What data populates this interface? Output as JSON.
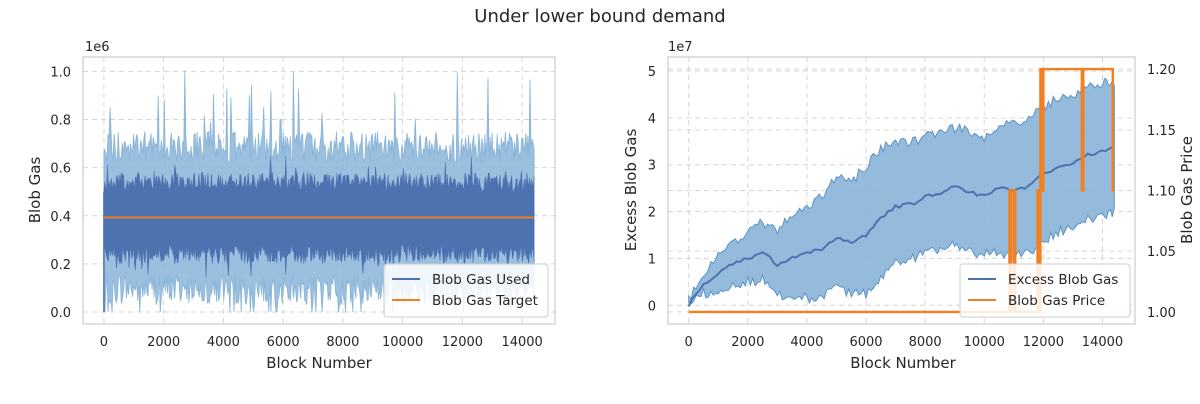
{
  "suptitle": "Under lower bound demand",
  "colors": {
    "blue": "#4c72b0",
    "light_blue": "#89b4d8",
    "orange": "#f47f20",
    "grid": "#d6d6d6",
    "frame": "#cccccc"
  },
  "chart_data": [
    {
      "type": "line",
      "xlabel": "Block Number",
      "ylabel": "Blob Gas",
      "offset_label": "1e6",
      "xlim": [
        -700,
        15100
      ],
      "ylim": [
        -0.05,
        1.06
      ],
      "xticks": [
        0,
        2000,
        4000,
        6000,
        8000,
        10000,
        12000,
        14000
      ],
      "xtick_labels": [
        "0",
        "2000",
        "4000",
        "6000",
        "8000",
        "10000",
        "12000",
        "14000"
      ],
      "yticks": [
        0.0,
        0.2,
        0.4,
        0.6,
        0.8,
        1.0
      ],
      "ytick_labels": [
        "0.0",
        "0.2",
        "0.4",
        "0.6",
        "0.8",
        "1.0"
      ],
      "grid": true,
      "legend_position": "lower right",
      "series": [
        {
          "name": "Blob Gas Used",
          "style": "band",
          "x_range": [
            0,
            14400
          ],
          "center": 0.39,
          "inner_band": [
            0.2,
            0.58
          ],
          "outer_band": [
            0.03,
            0.75
          ],
          "max_spike": 1.01
        },
        {
          "name": "Blob Gas Target",
          "style": "line",
          "x": [
            0,
            14400
          ],
          "values": [
            0.393,
            0.393
          ]
        }
      ]
    },
    {
      "type": "line",
      "xlabel": "Block Number",
      "ylabel": "Excess Blob Gas",
      "ylabel_right": "Blob Gas Price",
      "offset_label": "1e7",
      "xlim": [
        -700,
        15100
      ],
      "ylim": [
        -0.4,
        5.3
      ],
      "ylim_right": [
        0.99,
        1.21
      ],
      "xticks": [
        0,
        2000,
        4000,
        6000,
        8000,
        10000,
        12000,
        14000
      ],
      "xtick_labels": [
        "0",
        "2000",
        "4000",
        "6000",
        "8000",
        "10000",
        "12000",
        "14000"
      ],
      "yticks": [
        0,
        1,
        2,
        3,
        4,
        5
      ],
      "ytick_labels": [
        "0",
        "1",
        "2",
        "3",
        "4",
        "5"
      ],
      "yticks_right": [
        1.0,
        1.05,
        1.1,
        1.15,
        1.2
      ],
      "ytick_labels_right": [
        "1.00",
        "1.05",
        "1.10",
        "1.15",
        "1.20"
      ],
      "grid": true,
      "legend_position": "lower right",
      "series": [
        {
          "name": "Excess Blob Gas",
          "x": [
            0,
            500,
            1000,
            1500,
            2000,
            2500,
            3000,
            3500,
            4000,
            4500,
            5000,
            5500,
            6000,
            6500,
            7000,
            7500,
            8000,
            8500,
            9000,
            9500,
            10000,
            10500,
            11000,
            11500,
            12000,
            12500,
            13000,
            13500,
            14000,
            14400
          ],
          "values": [
            0.0,
            0.45,
            0.7,
            0.9,
            1.0,
            1.15,
            0.85,
            1.0,
            1.1,
            1.2,
            1.45,
            1.35,
            1.5,
            1.85,
            2.1,
            2.15,
            2.3,
            2.4,
            2.55,
            2.4,
            2.35,
            2.5,
            2.45,
            2.55,
            2.8,
            2.95,
            3.05,
            3.2,
            3.3,
            3.35
          ],
          "band_low": [
            0.0,
            0.25,
            0.35,
            0.45,
            0.5,
            0.55,
            0.2,
            0.2,
            0.15,
            0.15,
            0.35,
            0.25,
            0.25,
            0.6,
            0.9,
            1.0,
            1.1,
            1.2,
            1.3,
            1.15,
            1.1,
            1.15,
            1.05,
            1.1,
            1.4,
            1.55,
            1.7,
            1.85,
            1.9,
            2.0
          ],
          "band_high": [
            0.1,
            0.7,
            1.05,
            1.35,
            1.55,
            1.8,
            1.55,
            1.95,
            2.05,
            2.35,
            2.75,
            2.65,
            2.95,
            3.35,
            3.5,
            3.45,
            3.6,
            3.7,
            3.8,
            3.7,
            3.6,
            3.85,
            3.85,
            4.0,
            4.25,
            4.4,
            4.5,
            4.7,
            4.75,
            4.75
          ]
        },
        {
          "name": "Blob Gas Price",
          "axis": "right",
          "x": [
            0,
            10850,
            10850,
            10900,
            10900,
            11000,
            11000,
            11050,
            11050,
            11800,
            11800,
            11850,
            11850,
            11900,
            11900,
            11950,
            11950,
            12000,
            12000,
            12100,
            12100,
            13300,
            13300,
            13350,
            13350,
            13400,
            13400,
            14350,
            14350,
            14400
          ],
          "values": [
            1.0,
            1.0,
            1.1,
            1.1,
            1.0,
            1.0,
            1.1,
            1.1,
            1.0,
            1.0,
            1.1,
            1.1,
            1.0,
            1.0,
            1.2,
            1.2,
            1.1,
            1.1,
            1.2,
            1.2,
            1.2,
            1.2,
            1.1,
            1.1,
            1.2,
            1.2,
            1.2,
            1.2,
            1.1,
            1.1
          ]
        }
      ]
    }
  ]
}
